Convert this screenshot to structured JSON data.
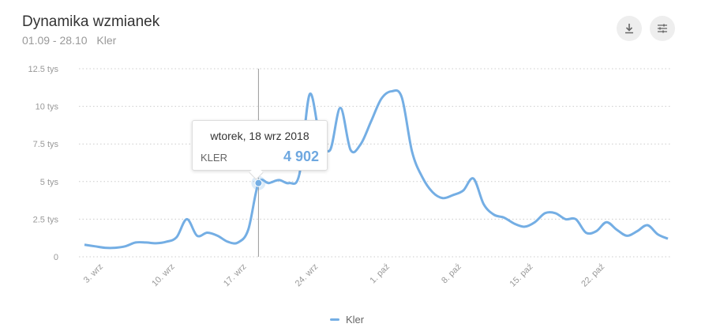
{
  "header": {
    "title": "Dynamika wzmianek",
    "date_range": "01.09 - 28.10",
    "query": "Kler"
  },
  "toolbar": {
    "download_icon": "download-icon",
    "settings_icon": "sliders-icon"
  },
  "tooltip": {
    "date": "wtorek, 18 wrz 2018",
    "series": "KLER",
    "value": "4 902"
  },
  "colors": {
    "series": "#74aee4",
    "grid": "#cccccc",
    "text": "#999999"
  },
  "chart_data": {
    "type": "line",
    "title": "Dynamika wzmianek",
    "x_start": "2018-09-01",
    "x_end": "2018-10-28",
    "ylim": [
      0,
      12.5
    ],
    "y_ticks": [
      {
        "v": 0,
        "label": "0"
      },
      {
        "v": 2.5,
        "label": "2.5 tys"
      },
      {
        "v": 5,
        "label": "5 tys"
      },
      {
        "v": 7.5,
        "label": "7.5 tys"
      },
      {
        "v": 10,
        "label": "10 tys"
      },
      {
        "v": 12.5,
        "label": "12.5 tys"
      }
    ],
    "x_ticks": [
      {
        "day": 2,
        "label": "3. wrz"
      },
      {
        "day": 9,
        "label": "10. wrz"
      },
      {
        "day": 16,
        "label": "17. wrz"
      },
      {
        "day": 23,
        "label": "24. wrz"
      },
      {
        "day": 30,
        "label": "1. paź"
      },
      {
        "day": 37,
        "label": "8. paź"
      },
      {
        "day": 44,
        "label": "15. paź"
      },
      {
        "day": 51,
        "label": "22. paź"
      }
    ],
    "grid": true,
    "legend_position": "bottom-center",
    "series": [
      {
        "name": "Kler",
        "unit": "tys",
        "values": [
          0.8,
          0.7,
          0.6,
          0.6,
          0.7,
          0.95,
          0.95,
          0.9,
          1.0,
          1.3,
          2.5,
          1.4,
          1.6,
          1.4,
          1.0,
          0.95,
          1.8,
          4.902,
          4.9,
          5.1,
          4.9,
          5.5,
          10.8,
          8.0,
          7.1,
          9.9,
          7.1,
          7.5,
          9.0,
          10.5,
          11.0,
          10.6,
          7.0,
          5.3,
          4.3,
          3.9,
          4.1,
          4.4,
          5.2,
          3.5,
          2.8,
          2.6,
          2.2,
          2.0,
          2.3,
          2.9,
          2.9,
          2.5,
          2.5,
          1.6,
          1.7,
          2.3,
          1.8,
          1.4,
          1.7,
          2.1,
          1.5,
          1.2
        ]
      }
    ],
    "highlight_index": 17
  }
}
